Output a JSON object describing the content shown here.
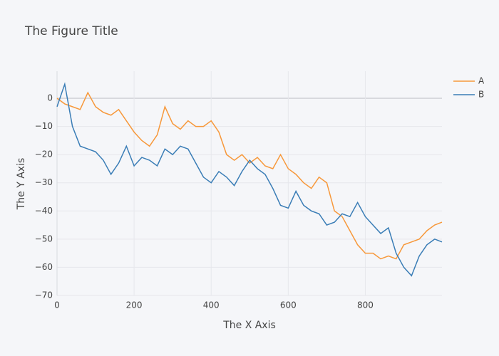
{
  "chart_data": {
    "type": "line",
    "title": "The Figure Title",
    "x_label": "The X Axis",
    "y_label": "The Y Axis",
    "x": [
      0,
      20,
      40,
      60,
      80,
      100,
      120,
      140,
      160,
      180,
      200,
      220,
      240,
      260,
      280,
      300,
      320,
      340,
      360,
      380,
      400,
      420,
      440,
      460,
      480,
      500,
      520,
      540,
      560,
      580,
      600,
      620,
      640,
      660,
      680,
      700,
      720,
      740,
      760,
      780,
      800,
      820,
      840,
      860,
      880,
      900,
      920,
      940,
      960,
      980,
      999
    ],
    "series": [
      {
        "name": "A",
        "color": "#f7983a",
        "values": [
          0,
          -2,
          -3,
          -4,
          2,
          -3,
          -5,
          -6,
          -4,
          -8,
          -12,
          -15,
          -17,
          -13,
          -3,
          -9,
          -11,
          -8,
          -10,
          -10,
          -8,
          -12,
          -20,
          -22,
          -20,
          -23,
          -21,
          -24,
          -25,
          -20,
          -25,
          -27,
          -30,
          -32,
          -28,
          -30,
          -40,
          -42,
          -47,
          -52,
          -55,
          -55,
          -57,
          -56,
          -57,
          -52,
          -51,
          -50,
          -47,
          -45,
          -44
        ]
      },
      {
        "name": "B",
        "color": "#3a7db6",
        "values": [
          -3,
          5,
          -10,
          -17,
          -18,
          -19,
          -22,
          -27,
          -23,
          -17,
          -24,
          -21,
          -22,
          -24,
          -18,
          -20,
          -17,
          -18,
          -23,
          -28,
          -30,
          -26,
          -28,
          -31,
          -26,
          -22,
          -25,
          -27,
          -32,
          -38,
          -39,
          -33,
          -38,
          -40,
          -41,
          -45,
          -44,
          -41,
          -42,
          -37,
          -42,
          -45,
          -48,
          -46,
          -55,
          -60,
          -63,
          -56,
          -52,
          -50,
          -51
        ]
      }
    ],
    "xlim": [
      0,
      999
    ],
    "ylim": [
      -70,
      9.6
    ],
    "xticks": [
      0,
      200,
      400,
      600,
      800
    ],
    "yticks": [
      0,
      {
        "value": -10,
        "label": "−10"
      },
      {
        "value": -20,
        "label": "−20"
      },
      {
        "value": -30,
        "label": "−30"
      },
      {
        "value": -40,
        "label": "−40"
      },
      {
        "value": -50,
        "label": "−50"
      },
      {
        "value": -60,
        "label": "−60"
      },
      {
        "value": -70,
        "label": "−70"
      }
    ],
    "grid": true,
    "legend": "top-right"
  }
}
